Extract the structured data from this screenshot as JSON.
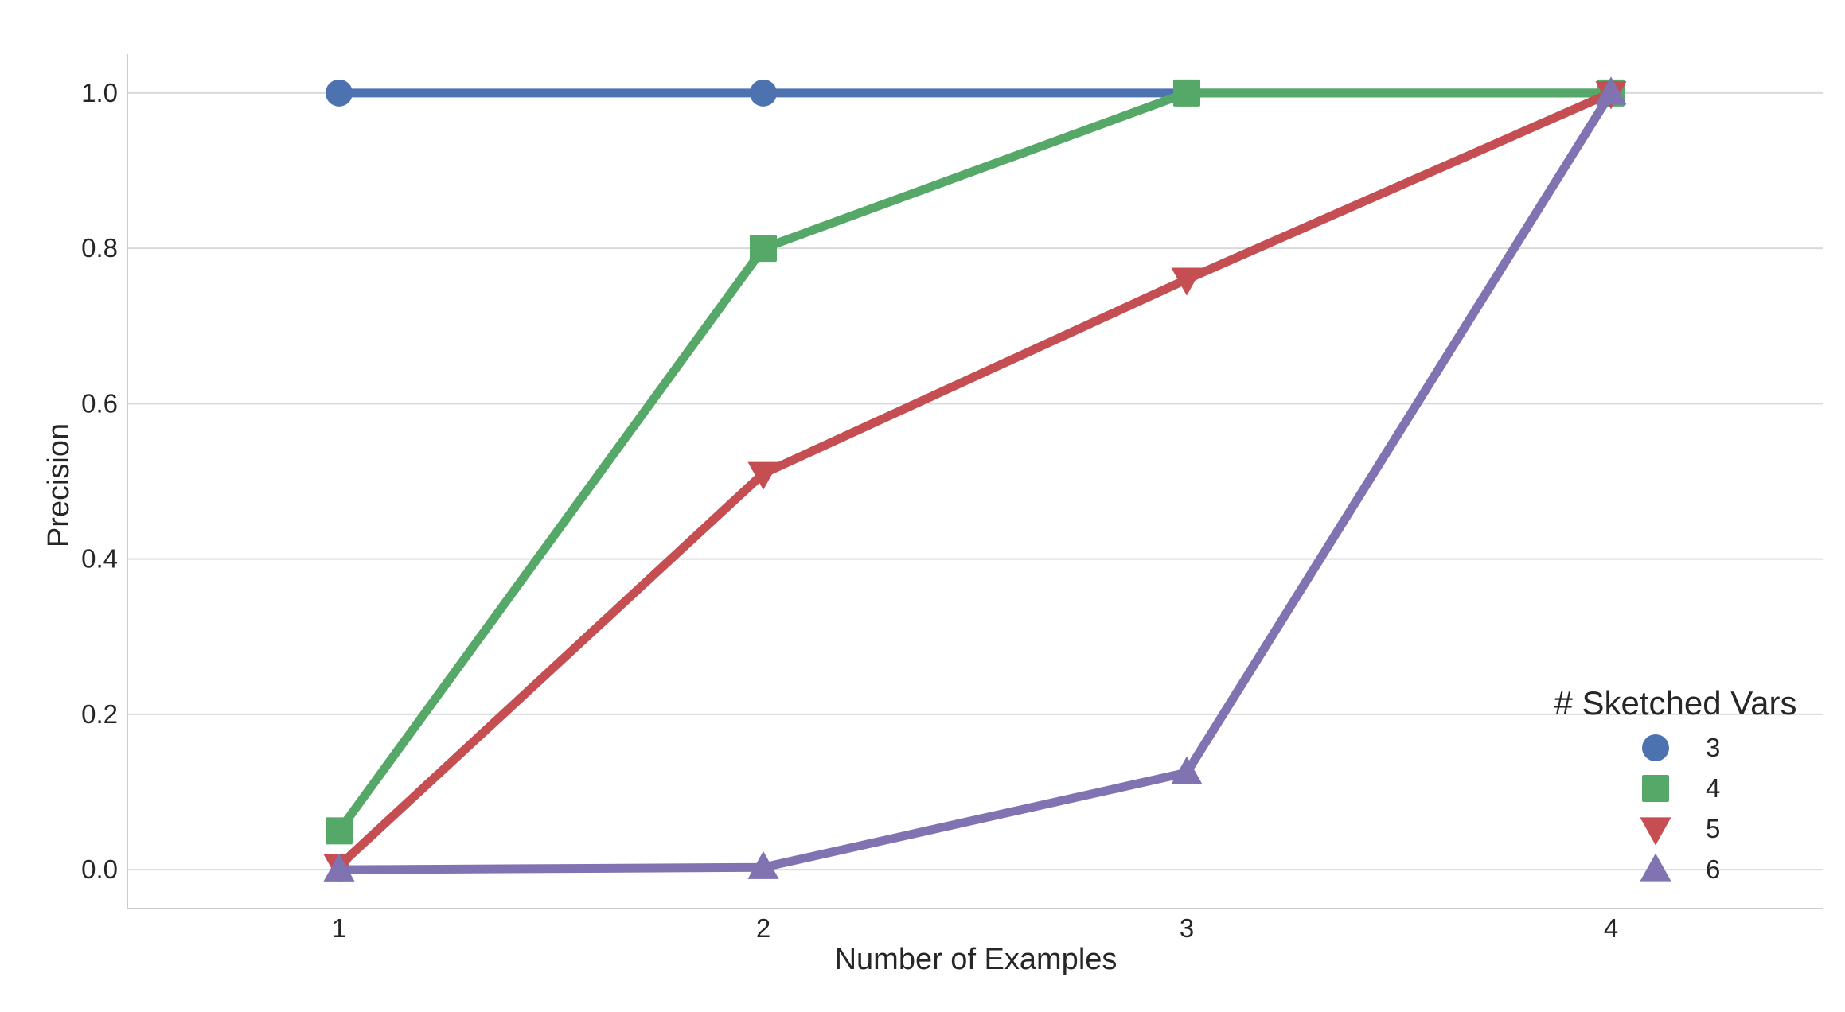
{
  "chart_data": {
    "type": "line",
    "xlabel": "Number of Examples",
    "ylabel": "Precision",
    "x": [
      1,
      2,
      3,
      4
    ],
    "x_tick_labels": [
      "1",
      "2",
      "3",
      "4"
    ],
    "ylim": [
      -0.05,
      1.05
    ],
    "y_ticks": [
      0.0,
      0.2,
      0.4,
      0.6,
      0.8,
      1.0
    ],
    "y_tick_labels": [
      "0.0",
      "0.2",
      "0.4",
      "0.6",
      "0.8",
      "1.0"
    ],
    "grid": "horizontal",
    "legend": {
      "title": "# Sketched Vars",
      "placement": "bottom-right"
    },
    "series": [
      {
        "name": "3",
        "values": [
          1.0,
          1.0,
          1.0,
          1.0
        ],
        "color": "#4c72b0",
        "marker": "circle"
      },
      {
        "name": "4",
        "values": [
          0.05,
          0.8,
          1.0,
          1.0
        ],
        "color": "#55a868",
        "marker": "square"
      },
      {
        "name": "5",
        "values": [
          0.005,
          0.51,
          0.76,
          1.0
        ],
        "color": "#c44e52",
        "marker": "triangle-down"
      },
      {
        "name": "6",
        "values": [
          0.0,
          0.003,
          0.125,
          1.0
        ],
        "color": "#8172b2",
        "marker": "triangle-up"
      }
    ]
  }
}
